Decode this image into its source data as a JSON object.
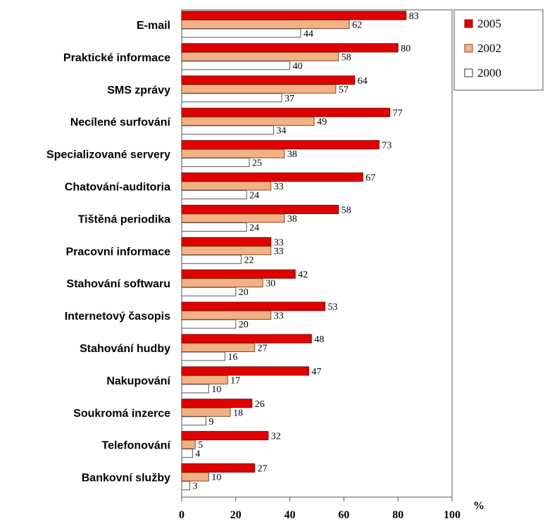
{
  "chart_data": {
    "type": "bar",
    "orientation": "horizontal",
    "categories": [
      "E-mail",
      "Praktické informace",
      "SMS zprávy",
      "Necílené surfování",
      "Specializované servery",
      "Chatování-auditoria",
      "Tištěná periodika",
      "Pracovní informace",
      "Stahování softwaru",
      "Internetový časopis",
      "Stahování hudby",
      "Nakupování",
      "Soukromá inzerce",
      "Telefonování",
      "Bankovní služby"
    ],
    "series": [
      {
        "name": "2005",
        "color": "#e00000",
        "values": [
          83,
          80,
          64,
          77,
          73,
          67,
          58,
          33,
          42,
          53,
          48,
          47,
          26,
          32,
          27
        ]
      },
      {
        "name": "2002",
        "color": "#f4b183",
        "values": [
          62,
          58,
          57,
          49,
          38,
          33,
          38,
          33,
          30,
          33,
          27,
          17,
          18,
          5,
          10
        ]
      },
      {
        "name": "2000",
        "color": "#ffffff",
        "values": [
          44,
          40,
          37,
          34,
          25,
          24,
          24,
          22,
          20,
          20,
          16,
          10,
          9,
          4,
          3
        ]
      }
    ],
    "xlim": [
      0,
      100
    ],
    "xticks": [
      "0",
      "20",
      "40",
      "60",
      "80",
      "100"
    ],
    "unit": "%",
    "grid": false,
    "legend_position": "top-right"
  }
}
